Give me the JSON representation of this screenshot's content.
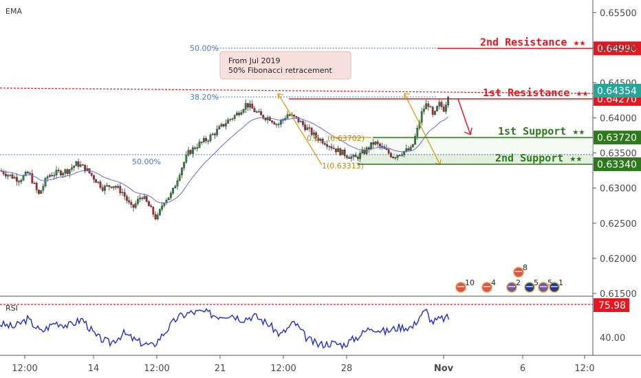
{
  "indicators": {
    "main": "EMA",
    "sub": "RSI"
  },
  "annotation": {
    "line1": "From Jul 2019",
    "line2": "50% Fibonacci retracement"
  },
  "fib_labels": {
    "fib50_top": "50.00%",
    "fib382": "38.20%",
    "fib50_bottom": "50.00%",
    "fib618": "0.6",
    "fib618_value": "(0.63702)",
    "fib100": "1(0.63313)"
  },
  "levels": [
    {
      "label": "2nd Resistance ★★",
      "price_text": "0.64990",
      "value": 0.6499,
      "color": "#e8161e"
    },
    {
      "label": "1st Resistance ★★",
      "price_text": "0.64270",
      "value": 0.6427,
      "color": "#e8161e"
    },
    {
      "label": "1st Support ★★",
      "price_text": "0.63720",
      "value": 0.6372,
      "color": "#2d7a1c"
    },
    {
      "label": "2nd Support ★★",
      "price_text": "0.63340",
      "value": 0.6334,
      "color": "#2d7a1c"
    }
  ],
  "current_price": {
    "text": "0.64354",
    "value": 0.64354,
    "color": "#26a69a"
  },
  "rsi_current": {
    "text": "75.98",
    "value": 75.98,
    "color": "#e8161e"
  },
  "events": [
    {
      "flag": "us",
      "count": "10"
    },
    {
      "flag": "us",
      "count": "4"
    },
    {
      "flag": "au-us",
      "count": "2"
    },
    {
      "flag": "au",
      "count": "5"
    },
    {
      "flag": "us",
      "count": "8"
    },
    {
      "flag": "au-us",
      "count": "5"
    },
    {
      "flag": "au",
      "count": "1"
    }
  ],
  "chart_data": {
    "type": "candlestick",
    "title": "",
    "y_ticks": [
      "0.65500",
      "0.65000",
      "0.64500",
      "0.64000",
      "0.63500",
      "0.63000",
      "0.62500",
      "0.62000",
      "0.61500"
    ],
    "ylim": [
      0.6148,
      0.6562
    ],
    "x_ticks": [
      "12:00",
      "14",
      "12:00",
      "21",
      "12:00",
      "28",
      "Nov",
      "6",
      "12:0"
    ],
    "x_tick_bold": "Nov",
    "rsi_ticks": [
      "40.00"
    ],
    "rsi_ylim": [
      25,
      92
    ],
    "price_path": [
      [
        0,
        0.6325
      ],
      [
        14,
        0.6318
      ],
      [
        28,
        0.6312
      ],
      [
        42,
        0.6322
      ],
      [
        56,
        0.629
      ],
      [
        70,
        0.6318
      ],
      [
        84,
        0.6322
      ],
      [
        98,
        0.6325
      ],
      [
        112,
        0.6335
      ],
      [
        124,
        0.6328
      ],
      [
        136,
        0.6315
      ],
      [
        150,
        0.63
      ],
      [
        164,
        0.6305
      ],
      [
        178,
        0.6294
      ],
      [
        192,
        0.627
      ],
      [
        206,
        0.629
      ],
      [
        216,
        0.6275
      ],
      [
        228,
        0.6255
      ],
      [
        238,
        0.6282
      ],
      [
        250,
        0.6292
      ],
      [
        262,
        0.6325
      ],
      [
        274,
        0.635
      ],
      [
        288,
        0.6362
      ],
      [
        302,
        0.637
      ],
      [
        316,
        0.6382
      ],
      [
        330,
        0.6395
      ],
      [
        344,
        0.6405
      ],
      [
        358,
        0.642
      ],
      [
        368,
        0.6412
      ],
      [
        380,
        0.6402
      ],
      [
        392,
        0.64
      ],
      [
        404,
        0.639
      ],
      [
        418,
        0.6405
      ],
      [
        432,
        0.6398
      ],
      [
        446,
        0.6385
      ],
      [
        460,
        0.6372
      ],
      [
        474,
        0.6365
      ],
      [
        488,
        0.6355
      ],
      [
        502,
        0.6348
      ],
      [
        516,
        0.6342
      ],
      [
        530,
        0.6352
      ],
      [
        544,
        0.6365
      ],
      [
        558,
        0.6355
      ],
      [
        572,
        0.6345
      ],
      [
        586,
        0.6352
      ],
      [
        598,
        0.6355
      ],
      [
        606,
        0.638
      ],
      [
        614,
        0.641
      ],
      [
        622,
        0.6422
      ],
      [
        630,
        0.64
      ],
      [
        638,
        0.642
      ],
      [
        646,
        0.6412
      ],
      [
        652,
        0.6436
      ]
    ],
    "rsi_path": [
      [
        0,
        60
      ],
      [
        20,
        56
      ],
      [
        40,
        66
      ],
      [
        60,
        50
      ],
      [
        80,
        62
      ],
      [
        100,
        58
      ],
      [
        120,
        66
      ],
      [
        140,
        44
      ],
      [
        160,
        36
      ],
      [
        180,
        48
      ],
      [
        200,
        38
      ],
      [
        222,
        32
      ],
      [
        240,
        50
      ],
      [
        258,
        68
      ],
      [
        276,
        74
      ],
      [
        296,
        75
      ],
      [
        316,
        70
      ],
      [
        336,
        72
      ],
      [
        352,
        66
      ],
      [
        370,
        70
      ],
      [
        390,
        60
      ],
      [
        408,
        46
      ],
      [
        428,
        62
      ],
      [
        446,
        42
      ],
      [
        462,
        34
      ],
      [
        482,
        36
      ],
      [
        500,
        34
      ],
      [
        520,
        44
      ],
      [
        540,
        56
      ],
      [
        560,
        50
      ],
      [
        580,
        56
      ],
      [
        600,
        56
      ],
      [
        612,
        72
      ],
      [
        620,
        76
      ],
      [
        628,
        62
      ],
      [
        640,
        66
      ],
      [
        654,
        68
      ]
    ]
  }
}
